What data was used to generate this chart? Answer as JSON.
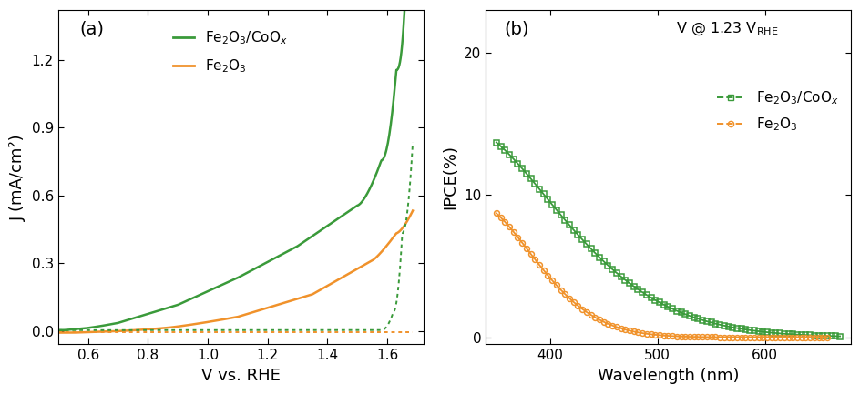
{
  "panel_a": {
    "title": "(a)",
    "xlabel": "V vs. RHE",
    "ylabel": "J (mA/cm²)",
    "xlim": [
      0.5,
      1.72
    ],
    "ylim": [
      -0.06,
      1.42
    ],
    "yticks": [
      0.0,
      0.3,
      0.6,
      0.9,
      1.2
    ],
    "xticks": [
      0.6,
      0.8,
      1.0,
      1.2,
      1.4,
      1.6
    ],
    "color_green": "#3a9a3a",
    "color_orange": "#f0922b"
  },
  "panel_b": {
    "title": "(b)",
    "xlabel": "Wavelength (nm)",
    "ylabel": "IPCE(%)",
    "xlim": [
      340,
      680
    ],
    "ylim": [
      -0.5,
      23
    ],
    "yticks": [
      0,
      10,
      20
    ],
    "xticks": [
      400,
      500,
      600
    ],
    "color_green": "#3a9a3a",
    "color_orange": "#f0922b"
  }
}
